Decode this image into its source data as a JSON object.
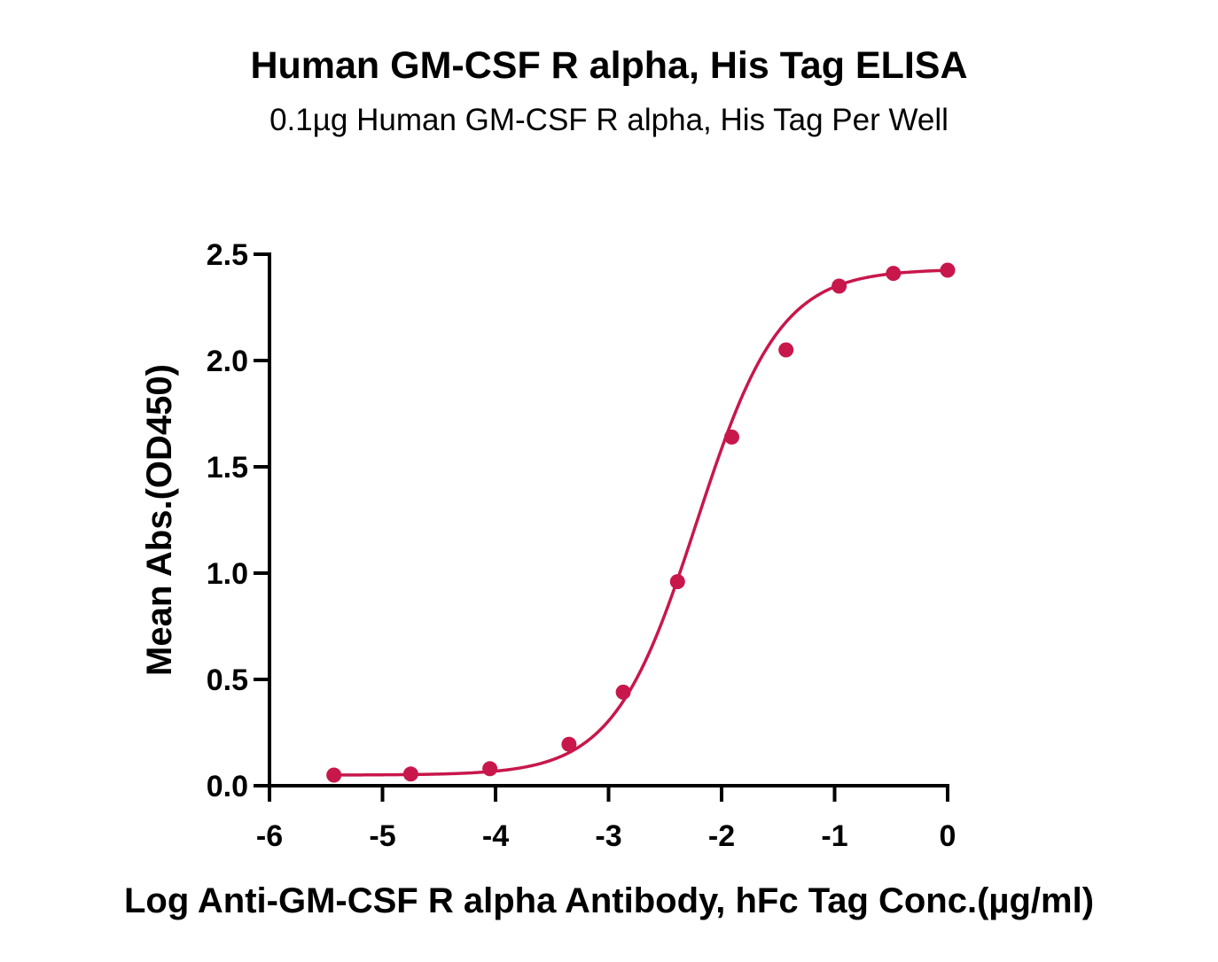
{
  "chart_data": {
    "type": "scatter",
    "title": "Human GM-CSF R alpha, His Tag ELISA",
    "subtitle": "0.1µg Human GM-CSF R alpha, His Tag Per Well",
    "xlabel": "Log Anti-GM-CSF R alpha Antibody, hFc Tag Conc.(µg/ml)",
    "ylabel": "Mean Abs.(OD450)",
    "xlim": [
      -6,
      0
    ],
    "ylim": [
      0,
      2.5
    ],
    "x_ticks": [
      "-6",
      "-5",
      "-4",
      "-3",
      "-2",
      "-1",
      "0"
    ],
    "y_ticks": [
      "0.0",
      "0.5",
      "1.0",
      "1.5",
      "2.0",
      "2.5"
    ],
    "grid": false,
    "series": [
      {
        "color": "#c8174b",
        "fit": "four-parameter logistic",
        "x": [
          -5.43,
          -4.75,
          -4.05,
          -3.35,
          -2.87,
          -2.39,
          -1.91,
          -1.43,
          -0.96,
          -0.48,
          0.0
        ],
        "y": [
          0.05,
          0.055,
          0.08,
          0.195,
          0.44,
          0.96,
          1.64,
          2.05,
          2.35,
          2.41,
          2.425
        ]
      }
    ]
  }
}
